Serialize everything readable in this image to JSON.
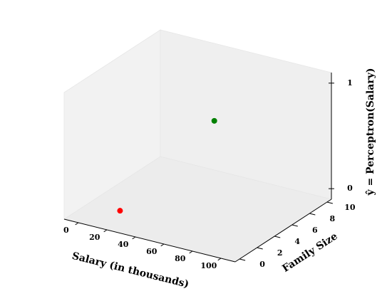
{
  "chart_data": {
    "type": "scatter3d",
    "xlabel": "Salary (in thousands)",
    "ylabel": "Family Size",
    "zlabel": "ŷ = Perceptron(Salary)",
    "x": [
      20,
      80
    ],
    "y": [
      1,
      2
    ],
    "z": [
      0,
      1
    ],
    "colors": [
      "#ff0000",
      "#008000"
    ],
    "xlim": [
      -10,
      110
    ],
    "ylim": [
      -0.5,
      10.5
    ],
    "zlim": [
      -0.1,
      1.1
    ],
    "xticks": [
      0,
      20,
      40,
      60,
      80,
      100
    ],
    "yticks": [
      0,
      2,
      4,
      6,
      8,
      10
    ],
    "zticks": [
      0,
      1
    ]
  }
}
